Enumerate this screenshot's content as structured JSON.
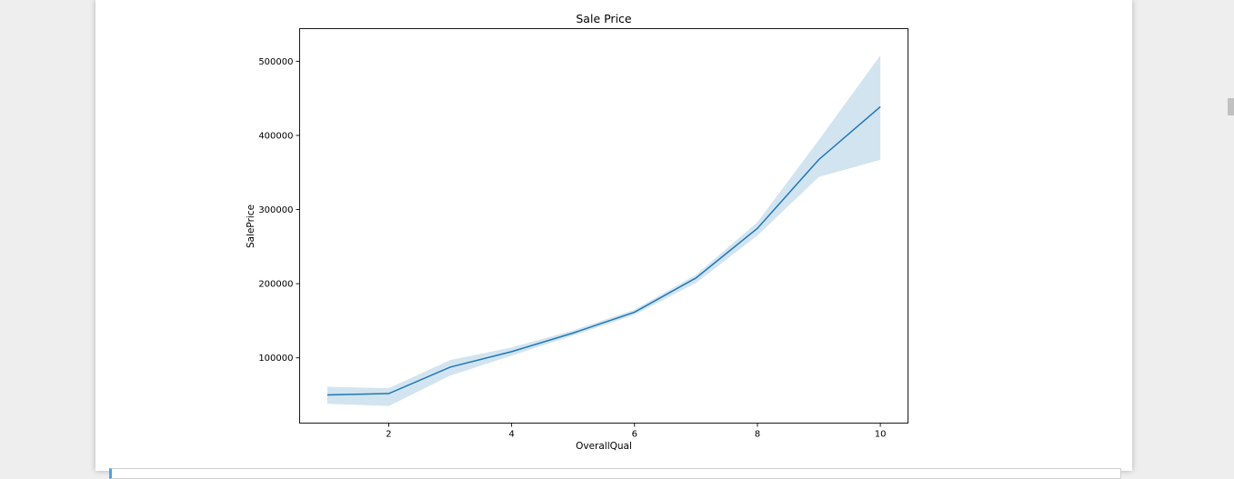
{
  "chart_data": {
    "type": "line",
    "title": "Sale Price",
    "xlabel": "OverallQual",
    "ylabel": "SalePrice",
    "xlim": [
      0.55,
      10.45
    ],
    "ylim": [
      12000,
      544000
    ],
    "xticks": [
      2,
      4,
      6,
      8,
      10
    ],
    "yticks": [
      100000,
      200000,
      300000,
      400000,
      500000
    ],
    "grid": false,
    "x": [
      1,
      2,
      3,
      4,
      5,
      6,
      7,
      8,
      9,
      10
    ],
    "series": [
      {
        "values": [
          50000,
          51800,
          87500,
          108400,
          133500,
          161600,
          207700,
          274700,
          367500,
          438600
        ],
        "ci_low": [
          38000,
          35000,
          76000,
          103000,
          130000,
          158000,
          201000,
          265000,
          344000,
          367000
        ],
        "ci_high": [
          61000,
          59000,
          97000,
          114000,
          137000,
          165000,
          212000,
          283000,
          394000,
          508000
        ],
        "color": "#1f77b4",
        "band_color": "#1f77b4"
      }
    ]
  },
  "colors": {
    "line": "#1f77b4",
    "band": "#1f77b4",
    "page_background": "#eeeeee",
    "panel_background": "#ffffff",
    "cell_accent": "#42a5f5"
  }
}
